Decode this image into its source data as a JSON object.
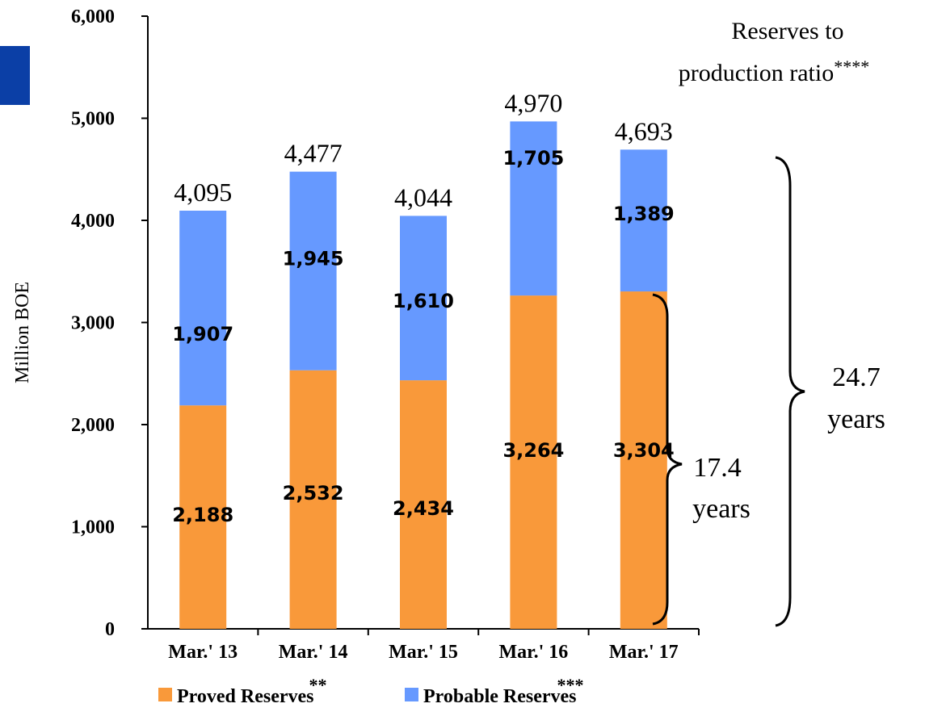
{
  "chart_data": {
    "type": "bar",
    "stacked": true,
    "categories": [
      "Mar.' 13",
      "Mar.' 14",
      "Mar.' 15",
      "Mar.' 16",
      "Mar.' 17"
    ],
    "series": [
      {
        "name": "Proved Reserves",
        "name_suffix": "**",
        "color": "#f9993a",
        "values": [
          2188,
          2532,
          2434,
          3264,
          3304
        ],
        "labels": [
          "2,188",
          "2,532",
          "2,434",
          "3,264",
          "3,304"
        ]
      },
      {
        "name": "Probable Reserves",
        "name_suffix": "***",
        "color": "#6699ff",
        "values": [
          1907,
          1945,
          1610,
          1705,
          1389
        ],
        "labels": [
          "1,907",
          "1,945",
          "1,610",
          "1,705",
          "1,389"
        ]
      }
    ],
    "totals": [
      "4,095",
      "4,477",
      "4,044",
      "4,970",
      "4,693"
    ],
    "ylabel": "Million BOE",
    "ylim": [
      0,
      6000
    ],
    "yticks": [
      0,
      1000,
      2000,
      3000,
      4000,
      5000,
      6000
    ],
    "ytick_labels": [
      "0",
      "1,000",
      "2,000",
      "3,000",
      "4,000",
      "5,000",
      "6,000"
    ],
    "grid": false,
    "legend_position": "bottom",
    "annotation": {
      "title_line1": "Reserves to",
      "title_line2": "production ratio",
      "title_suffix": "****",
      "total_ratio_value": "24.7",
      "total_ratio_unit": "years",
      "proved_ratio_value": "17.4",
      "proved_ratio_unit": "years"
    }
  }
}
